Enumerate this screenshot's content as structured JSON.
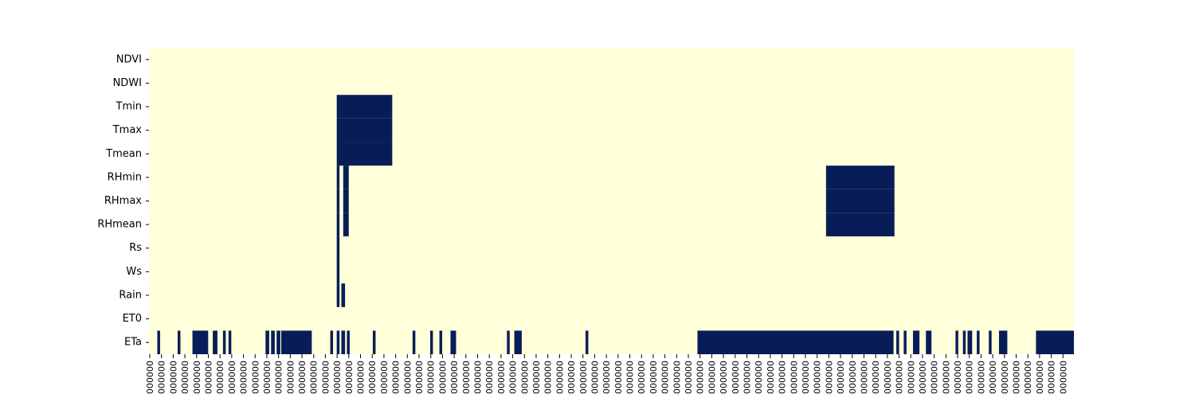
{
  "chart_data": {
    "type": "heatmap",
    "title": "",
    "xlabel": "",
    "ylabel": "",
    "rows": [
      "NDVI",
      "NDWI",
      "Tmin",
      "Tmax",
      "Tmean",
      "RHmin",
      "RHmax",
      "RHmean",
      "Rs",
      "Ws",
      "Rain",
      "ET0",
      "ETa"
    ],
    "num_columns": 1000,
    "x_tick_labels": [
      "000000",
      "000000",
      "000000",
      "000000",
      "000000",
      "000000",
      "000000",
      "000000",
      "000000",
      "000000",
      "000000",
      "000000",
      "000000",
      "000000",
      "000000",
      "000000",
      "000000",
      "000000",
      "000000",
      "000000",
      "000000",
      "000000",
      "000000",
      "000000",
      "000000",
      "000000",
      "000000",
      "000000",
      "000000",
      "000000",
      "000000",
      "000000",
      "000000",
      "000000",
      "000000",
      "000000",
      "000000",
      "000000",
      "000000",
      "000000",
      "000000",
      "000000",
      "000000",
      "000000",
      "000000",
      "000000",
      "000000",
      "000000",
      "000000",
      "000000",
      "000000",
      "000000",
      "000000",
      "000000",
      "000000",
      "000000",
      "000000",
      "000000",
      "000000",
      "000000",
      "000000",
      "000000",
      "000000",
      "000000",
      "000000",
      "000000",
      "000000",
      "000000",
      "000000",
      "000000",
      "000000",
      "000000",
      "000000",
      "000000",
      "000000",
      "000000",
      "000000",
      "000000",
      "000000"
    ],
    "colors": {
      "present": "#ffffd9",
      "missing": "#081d58"
    },
    "missing_column_ranges": {
      "NDVI": [],
      "NDWI": [],
      "Tmin": [
        [
          203,
          262
        ]
      ],
      "Tmax": [
        [
          203,
          262
        ]
      ],
      "Tmean": [
        [
          203,
          262
        ]
      ],
      "RHmin": [
        [
          203,
          205
        ],
        [
          210,
          215
        ],
        [
          732,
          805
        ]
      ],
      "RHmax": [
        [
          203,
          205
        ],
        [
          210,
          215
        ],
        [
          732,
          805
        ]
      ],
      "RHmean": [
        [
          203,
          205
        ],
        [
          210,
          215
        ],
        [
          732,
          805
        ]
      ],
      "Rs": [
        [
          203,
          205
        ]
      ],
      "Ws": [
        [
          203,
          205
        ]
      ],
      "Rain": [
        [
          203,
          205
        ],
        [
          208,
          211
        ]
      ],
      "ET0": [],
      "ETa": [
        [
          9,
          11
        ],
        [
          31,
          33
        ],
        [
          47,
          63
        ],
        [
          69,
          73
        ],
        [
          80,
          82
        ],
        [
          86,
          88
        ],
        [
          126,
          129
        ],
        [
          132,
          135
        ],
        [
          138,
          141
        ],
        [
          143,
          175
        ],
        [
          196,
          198
        ],
        [
          203,
          205
        ],
        [
          208,
          211
        ],
        [
          214,
          216
        ],
        [
          242,
          244
        ],
        [
          285,
          287
        ],
        [
          304,
          306
        ],
        [
          314,
          316
        ],
        [
          326,
          331
        ],
        [
          387,
          389
        ],
        [
          395,
          402
        ],
        [
          472,
          474
        ],
        [
          593,
          804
        ],
        [
          808,
          810
        ],
        [
          816,
          818
        ],
        [
          826,
          832
        ],
        [
          840,
          845
        ],
        [
          872,
          874
        ],
        [
          880,
          882
        ],
        [
          885,
          889
        ],
        [
          895,
          897
        ],
        [
          908,
          910
        ],
        [
          919,
          927
        ],
        [
          959,
          999
        ]
      ]
    }
  }
}
